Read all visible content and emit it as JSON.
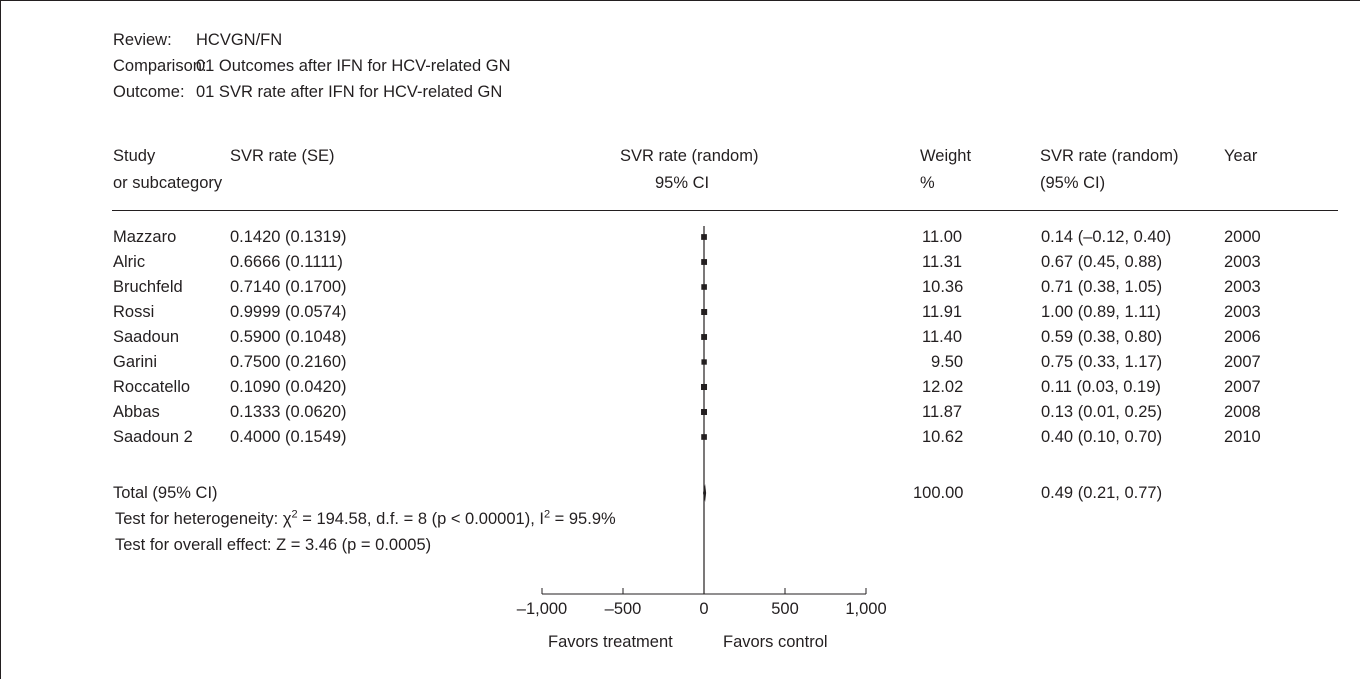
{
  "review": {
    "review_label": "Review:",
    "review_value": "HCVGN/FN",
    "comparison_label": "Comparison:",
    "comparison_value": "01 Outcomes after IFN for HCV-related GN",
    "outcome_label": "Outcome:",
    "outcome_value": "01 SVR rate after IFN for HCV-related GN"
  },
  "columns": {
    "study_1": "Study",
    "study_2": "or subcategory",
    "svr_se": "SVR rate (SE)",
    "plot_1": "SVR rate (random)",
    "plot_2": "95% CI",
    "weight_1": "Weight",
    "weight_2": "%",
    "ci_1": "SVR rate (random)",
    "ci_2": "(95% CI)",
    "year": "Year"
  },
  "rows": [
    {
      "study": "Mazzaro",
      "svr_se": "0.1420 (0.1319)",
      "weight": "11.00",
      "ci": "0.14 (–0.12, 0.40)",
      "year": "2000"
    },
    {
      "study": "Alric",
      "svr_se": "0.6666 (0.1111)",
      "weight": "11.31",
      "ci": "0.67 (0.45, 0.88)",
      "year": "2003"
    },
    {
      "study": "Bruchfeld",
      "svr_se": "0.7140 (0.1700)",
      "weight": "10.36",
      "ci": "0.71 (0.38, 1.05)",
      "year": "2003"
    },
    {
      "study": "Rossi",
      "svr_se": "0.9999 (0.0574)",
      "weight": "11.91",
      "ci": "1.00 (0.89, 1.11)",
      "year": "2003"
    },
    {
      "study": "Saadoun",
      "svr_se": "0.5900 (0.1048)",
      "weight": "11.40",
      "ci": "0.59 (0.38, 0.80)",
      "year": "2006"
    },
    {
      "study": "Garini",
      "svr_se": "0.7500 (0.2160)",
      "weight": "9.50",
      "ci": "0.75 (0.33, 1.17)",
      "year": "2007"
    },
    {
      "study": "Roccatello",
      "svr_se": "0.1090 (0.0420)",
      "weight": "12.02",
      "ci": "0.11 (0.03, 0.19)",
      "year": "2007"
    },
    {
      "study": "Abbas",
      "svr_se": "0.1333 (0.0620)",
      "weight": "11.87",
      "ci": "0.13 (0.01, 0.25)",
      "year": "2008"
    },
    {
      "study": "Saadoun 2",
      "svr_se": "0.4000 (0.1549)",
      "weight": "10.62",
      "ci": "0.40 (0.10, 0.70)",
      "year": "2010"
    }
  ],
  "total": {
    "label": "Total (95% CI)",
    "weight": "100.00",
    "ci": "0.49 (0.21, 0.77)"
  },
  "tests": {
    "heterogeneity_prefix": "Test for heterogeneity: χ",
    "heterogeneity_sup1": "2",
    "heterogeneity_mid": " = 194.58, d.f. = 8 (p < 0.00001), I",
    "heterogeneity_sup2": "2",
    "heterogeneity_suffix": " = 95.9%",
    "overall": "Test for overall effect: Z = 3.46 (p = 0.0005)"
  },
  "axis_labels": {
    "left": "Favors treatment",
    "right": "Favors control"
  },
  "chart_data": {
    "type": "scatter",
    "subtype": "forest-plot",
    "xlim": [
      -1000,
      1000
    ],
    "xticks": [
      -1000,
      -500,
      0,
      500,
      1000
    ],
    "xtick_labels": [
      "–1,000",
      "–500",
      "0",
      "500",
      "1,000"
    ],
    "studies": [
      {
        "name": "Mazzaro",
        "estimate": 0.14,
        "ci": [
          -0.12,
          0.4
        ],
        "weight": 11.0
      },
      {
        "name": "Alric",
        "estimate": 0.67,
        "ci": [
          0.45,
          0.88
        ],
        "weight": 11.31
      },
      {
        "name": "Bruchfeld",
        "estimate": 0.71,
        "ci": [
          0.38,
          1.05
        ],
        "weight": 10.36
      },
      {
        "name": "Rossi",
        "estimate": 1.0,
        "ci": [
          0.89,
          1.11
        ],
        "weight": 11.91
      },
      {
        "name": "Saadoun",
        "estimate": 0.59,
        "ci": [
          0.38,
          0.8
        ],
        "weight": 11.4
      },
      {
        "name": "Garini",
        "estimate": 0.75,
        "ci": [
          0.33,
          1.17
        ],
        "weight": 9.5
      },
      {
        "name": "Roccatello",
        "estimate": 0.11,
        "ci": [
          0.03,
          0.19
        ],
        "weight": 12.02
      },
      {
        "name": "Abbas",
        "estimate": 0.13,
        "ci": [
          0.01,
          0.25
        ],
        "weight": 11.87
      },
      {
        "name": "Saadoun 2",
        "estimate": 0.4,
        "ci": [
          0.1,
          0.7
        ],
        "weight": 10.62
      }
    ],
    "pooled": {
      "estimate": 0.49,
      "ci": [
        0.21,
        0.77
      ]
    },
    "colors": {
      "ink": "#231f20"
    }
  }
}
